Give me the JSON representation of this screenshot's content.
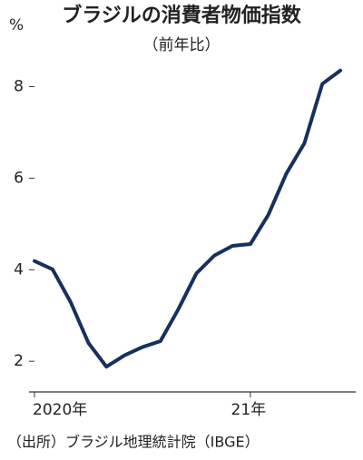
{
  "chart_data": {
    "type": "line",
    "title": "ブラジルの消費者物価指数",
    "subtitle": "（前年比）",
    "y_unit": "%",
    "categories": [
      "2020年",
      null,
      null,
      null,
      null,
      null,
      null,
      null,
      null,
      null,
      null,
      null,
      "21年",
      null,
      null,
      null,
      null,
      null
    ],
    "series": [
      {
        "name": "消費者物価指数",
        "color": "#17305e",
        "values": [
          4.19,
          4.01,
          3.3,
          2.4,
          1.88,
          2.13,
          2.31,
          2.44,
          3.14,
          3.92,
          4.31,
          4.52,
          4.56,
          5.2,
          6.1,
          6.76,
          8.06,
          8.35
        ]
      }
    ],
    "ylim": [
      1.33,
      9
    ],
    "yticks": [
      2,
      4,
      6,
      8
    ],
    "source": "（出所）ブラジル地理統計院（IBGE）"
  }
}
